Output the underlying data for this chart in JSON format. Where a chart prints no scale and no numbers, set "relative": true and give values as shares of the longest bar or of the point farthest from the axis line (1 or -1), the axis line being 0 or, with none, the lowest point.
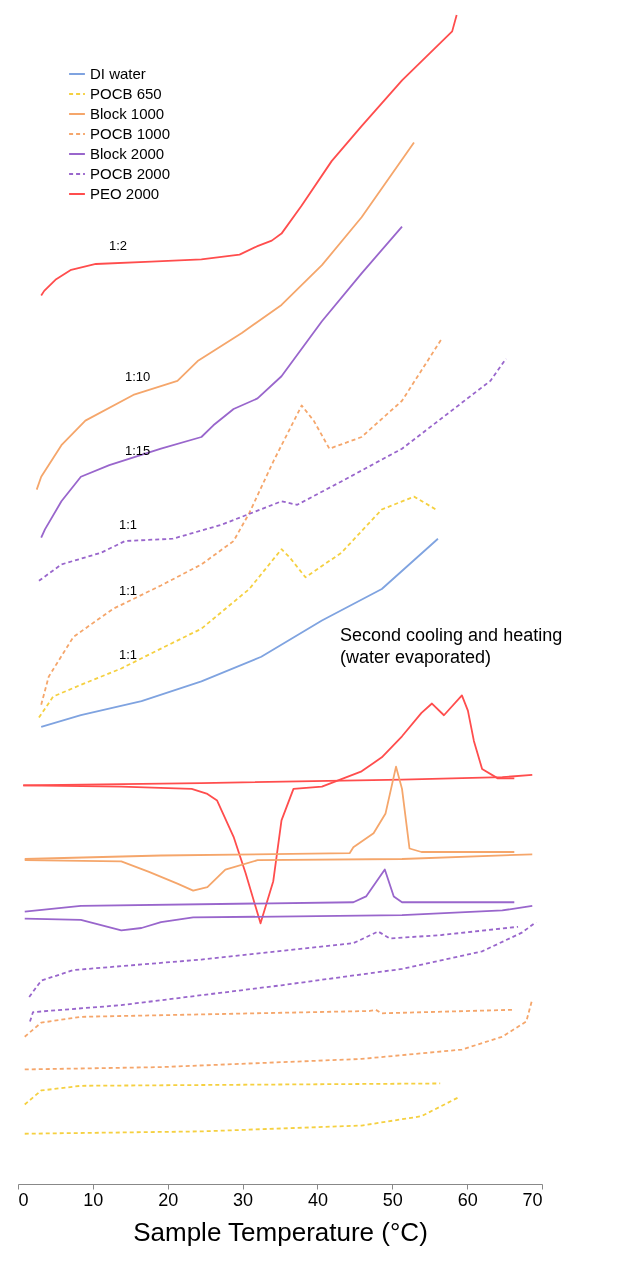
{
  "chart_data": {
    "type": "line",
    "relative": true,
    "xlabel": "Sample Temperature (°C)",
    "xlim": [
      0,
      70
    ],
    "xticks": [
      0,
      10,
      20,
      30,
      40,
      50,
      60,
      70
    ],
    "grid": false,
    "legend": "top left",
    "marker": "none",
    "series": [
      {
        "name": "DI water",
        "color": "#7fa3e0",
        "line_style": "solid",
        "x": [
          3.1,
          8.4,
          16.5,
          24.5,
          32.5,
          40.6,
          48.6,
          56.1
        ],
        "values": [
          0.391,
          0.401,
          0.413,
          0.43,
          0.451,
          0.482,
          0.509,
          0.552
        ]
      },
      {
        "name": "POCB 650",
        "color": "#f5d040",
        "line_style": "dashed",
        "x": [
          2.8,
          4.7,
          8.4,
          13.8,
          19.1,
          24.5,
          30.9,
          35.2,
          36.3,
          38.4,
          43.2,
          48.6,
          52.9,
          56.1
        ],
        "values": [
          0.399,
          0.417,
          0.427,
          0.441,
          0.458,
          0.475,
          0.509,
          0.543,
          0.536,
          0.519,
          0.54,
          0.577,
          0.588,
          0.576
        ]
      },
      {
        "name": "Block 1000",
        "color": "#f5a66b",
        "line_style": "solid",
        "x": [
          2.5,
          3.1,
          5.8,
          9.0,
          15.4,
          21.3,
          24.0,
          29.9,
          35.2,
          40.6,
          45.9,
          52.9
        ],
        "values": [
          0.594,
          0.605,
          0.632,
          0.653,
          0.675,
          0.687,
          0.704,
          0.728,
          0.752,
          0.786,
          0.827,
          0.891
        ]
      },
      {
        "name": "POCB 1000",
        "color": "#f5a66b",
        "line_style": "dashed",
        "x": [
          3.1,
          4.1,
          7.4,
          12.7,
          19.1,
          24.5,
          28.8,
          30.9,
          34.1,
          37.9,
          39.5,
          41.6,
          45.9,
          51.3,
          56.6
        ],
        "values": [
          0.41,
          0.434,
          0.468,
          0.492,
          0.512,
          0.53,
          0.55,
          0.574,
          0.618,
          0.666,
          0.653,
          0.629,
          0.639,
          0.67,
          0.723
        ]
      },
      {
        "name": "Block 2000",
        "color": "#9966cc",
        "line_style": "solid",
        "x": [
          3.1,
          3.6,
          5.8,
          8.4,
          12.2,
          19.1,
          24.5,
          26.1,
          28.8,
          32.0,
          35.2,
          40.6,
          45.9,
          51.3
        ],
        "values": [
          0.553,
          0.56,
          0.584,
          0.605,
          0.615,
          0.629,
          0.639,
          0.649,
          0.663,
          0.672,
          0.691,
          0.738,
          0.779,
          0.819
        ]
      },
      {
        "name": "POCB 2000",
        "color": "#9966cc",
        "line_style": "dashed",
        "x": [
          2.8,
          5.8,
          11.1,
          14.3,
          20.7,
          27.2,
          35.2,
          37.3,
          43.2,
          51.3,
          63.1,
          65.2
        ],
        "values": [
          0.516,
          0.53,
          0.54,
          0.55,
          0.552,
          0.564,
          0.584,
          0.581,
          0.601,
          0.629,
          0.687,
          0.706
        ]
      },
      {
        "name": "PEO 2000",
        "color": "#ff4d4d",
        "line_style": "solid",
        "x": [
          3.1,
          3.5,
          5.1,
          7.1,
          10.4,
          17.8,
          24.5,
          29.6,
          31.9,
          33.9,
          35.2,
          37.9,
          41.9,
          45.9,
          51.3,
          58.0,
          58.6
        ],
        "values": [
          0.76,
          0.764,
          0.774,
          0.782,
          0.787,
          0.789,
          0.791,
          0.795,
          0.802,
          0.807,
          0.813,
          0.837,
          0.875,
          0.905,
          0.944,
          0.986,
          1.0
        ]
      },
      {
        "color": "#ff4d4d",
        "line_style": "solid",
        "x": [
          0.7,
          13.8,
          23.2,
          25.2,
          26.6,
          28.8,
          30.4,
          32.4,
          34.1,
          35.2,
          36.8,
          40.6,
          45.9,
          48.6,
          51.3,
          53.9,
          55.3,
          56.9,
          59.3,
          60.1,
          60.9,
          62.0,
          64.1,
          66.3
        ],
        "values": [
          0.341,
          0.34,
          0.338,
          0.334,
          0.328,
          0.297,
          0.266,
          0.223,
          0.259,
          0.311,
          0.338,
          0.34,
          0.353,
          0.365,
          0.383,
          0.403,
          0.411,
          0.401,
          0.418,
          0.405,
          0.379,
          0.355,
          0.347,
          0.347
        ]
      },
      {
        "color": "#ff4d4d",
        "line_style": "solid",
        "x": [
          0.7,
          24.5,
          51.3,
          64.7,
          68.7
        ],
        "values": [
          0.341,
          0.343,
          0.346,
          0.348,
          0.35
        ]
      },
      {
        "color": "#f5a66b",
        "line_style": "solid",
        "x": [
          0.9,
          19.1,
          44.3,
          44.8,
          47.5,
          49.1,
          50.5,
          51.3,
          52.3,
          53.9,
          66.3
        ],
        "values": [
          0.278,
          0.281,
          0.283,
          0.288,
          0.3,
          0.317,
          0.357,
          0.338,
          0.287,
          0.284,
          0.284
        ]
      },
      {
        "color": "#f5a66b",
        "line_style": "solid",
        "x": [
          0.9,
          13.8,
          17.5,
          21.3,
          23.4,
          25.3,
          27.7,
          32.0,
          51.3,
          68.7
        ],
        "values": [
          0.277,
          0.276,
          0.267,
          0.257,
          0.251,
          0.254,
          0.269,
          0.277,
          0.278,
          0.282
        ]
      },
      {
        "color": "#9966cc",
        "line_style": "solid",
        "x": [
          0.9,
          8.4,
          44.8,
          46.5,
          49.0,
          50.2,
          51.3,
          66.3
        ],
        "values": [
          0.233,
          0.238,
          0.241,
          0.246,
          0.269,
          0.246,
          0.241,
          0.241
        ]
      },
      {
        "color": "#9966cc",
        "line_style": "solid",
        "x": [
          0.9,
          8.4,
          13.8,
          16.5,
          19.1,
          23.4,
          51.3,
          64.7,
          68.7
        ],
        "values": [
          0.227,
          0.226,
          0.217,
          0.219,
          0.224,
          0.228,
          0.23,
          0.234,
          0.238
        ]
      },
      {
        "color": "#9966cc",
        "line_style": "dashed",
        "x": [
          1.5,
          3.1,
          7.4,
          24.5,
          44.8,
          48.1,
          49.7,
          56.6,
          66.8
        ],
        "values": [
          0.16,
          0.174,
          0.183,
          0.192,
          0.206,
          0.216,
          0.21,
          0.213,
          0.22
        ]
      },
      {
        "color": "#9966cc",
        "line_style": "dashed",
        "x": [
          1.6,
          2.0,
          13.8,
          35.2,
          51.3,
          62.0,
          67.3,
          69.2
        ],
        "values": [
          0.139,
          0.147,
          0.153,
          0.17,
          0.184,
          0.199,
          0.215,
          0.224
        ]
      },
      {
        "color": "#f5a66b",
        "line_style": "dashed",
        "x": [
          0.9,
          3.1,
          8.4,
          47.0,
          47.8,
          48.6,
          66.0
        ],
        "values": [
          0.126,
          0.138,
          0.143,
          0.148,
          0.149,
          0.146,
          0.149
        ]
      },
      {
        "color": "#f5a66b",
        "line_style": "dashed",
        "x": [
          0.9,
          19.1,
          45.9,
          59.3,
          64.7,
          67.9,
          68.7
        ],
        "values": [
          0.098,
          0.1,
          0.107,
          0.115,
          0.126,
          0.139,
          0.158
        ]
      },
      {
        "color": "#f5d040",
        "line_style": "dashed",
        "x": [
          0.9,
          3.1,
          8.4,
          56.4
        ],
        "values": [
          0.068,
          0.08,
          0.084,
          0.086
        ]
      },
      {
        "color": "#f5d040",
        "line_style": "dashed",
        "x": [
          0.9,
          24.5,
          45.9,
          53.9,
          58.8
        ],
        "values": [
          0.043,
          0.045,
          0.05,
          0.058,
          0.074
        ]
      }
    ],
    "annotations": [
      "1:2",
      "1:10",
      "1:15",
      "1:1",
      "1:1",
      "1:1",
      "Second cooling and heating\n(water evaporated)"
    ]
  }
}
